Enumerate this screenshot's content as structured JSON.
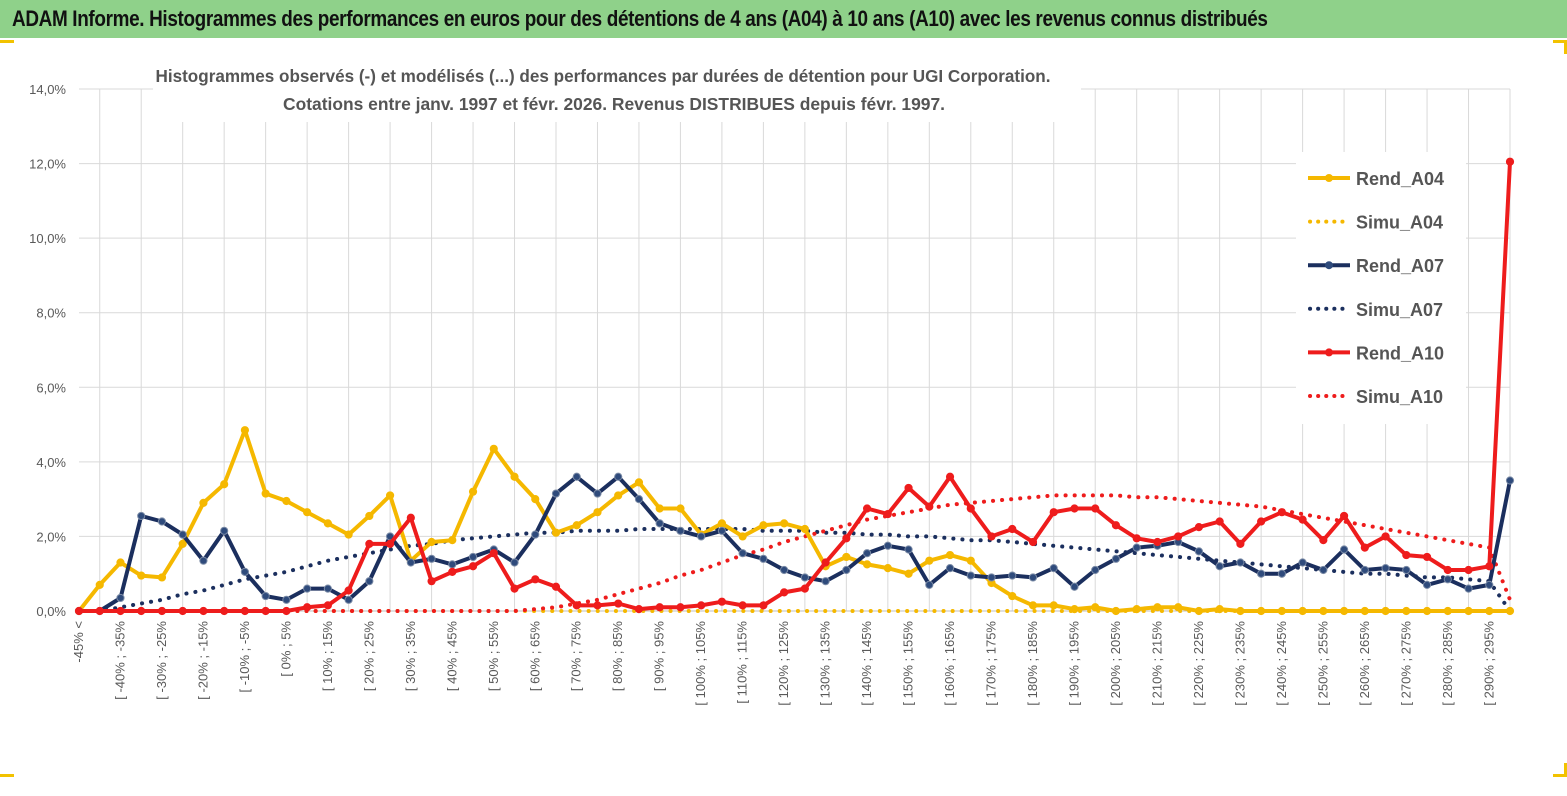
{
  "header": {
    "title": "ADAM Informe. Histogrammes des performances en euros pour des détentions de 4 ans (A04) à 10 ans (A10) avec les revenus connus distribués"
  },
  "colors": {
    "header_bg": "#8fd18a",
    "A04": "#f5b800",
    "A07": "#1b2f5e",
    "A10": "#ee1c1c",
    "grid": "#d9d9d9"
  },
  "chart_data": {
    "type": "line",
    "title_line1": "Histogrammes observés (-) et modélisés (...) des performances par durées de détention pour UGI Corporation.",
    "title_line2": "Cotations entre janv. 1997 et févr. 2026. Revenus DISTRIBUES depuis févr. 1997.",
    "y_ticks": [
      "0,0%",
      "2,0%",
      "4,0%",
      "6,0%",
      "8,0%",
      "10,0%",
      "12,0%",
      "14,0%"
    ],
    "ylim": [
      0,
      14
    ],
    "x_labels": [
      "-45% <",
      "[ -40% ; -35%",
      "[ -30% ; -25%",
      "[ -20% ; -15%",
      "[ -10% ; -5%",
      "[ 0% ; 5%",
      "[ 10% ; 15%",
      "[ 20% ; 25%",
      "[ 30% ; 35%",
      "[ 40% ; 45%",
      "[ 50% ; 55%",
      "[ 60% ; 65%",
      "[ 70% ; 75%",
      "[ 80% ; 85%",
      "[ 90% ; 95%",
      "[ 100% ; 105%",
      "[ 110% ; 115%",
      "[ 120% ; 125%",
      "[ 130% ; 135%",
      "[ 140% ; 145%",
      "[ 150% ; 155%",
      "[ 160% ; 165%",
      "[ 170% ; 175%",
      "[ 180% ; 185%",
      "[ 190% ; 195%",
      "[ 200% ; 205%",
      "[ 210% ; 215%",
      "[ 220% ; 225%",
      "[ 230% ; 235%",
      "[ 240% ; 245%",
      "[ 250% ; 255%",
      "[ 260% ; 265%",
      "[ 270% ; 275%",
      "[ 280% ; 285%",
      "[ 290% ; 295%"
    ],
    "n_categories": 70,
    "series": [
      {
        "name": "Rend_A04",
        "style": "solid",
        "color": "#f5b800",
        "values": [
          0.0,
          0.7,
          1.3,
          0.95,
          0.9,
          1.8,
          2.9,
          3.4,
          4.85,
          3.15,
          2.95,
          2.65,
          2.35,
          2.05,
          2.55,
          3.1,
          1.35,
          1.85,
          1.9,
          3.2,
          4.35,
          3.6,
          3.0,
          2.1,
          2.3,
          2.65,
          3.1,
          3.45,
          2.75,
          2.75,
          2.05,
          2.35,
          2.0,
          2.3,
          2.35,
          2.2,
          1.2,
          1.45,
          1.25,
          1.15,
          1.0,
          1.35,
          1.5,
          1.35,
          0.75,
          0.4,
          0.15,
          0.15,
          0.05,
          0.1,
          0.0,
          0.05,
          0.1,
          0.1,
          0.0,
          0.05,
          0.0,
          0.0,
          0.0,
          0.0,
          0.0,
          0.0,
          0.0,
          0.0,
          0.0,
          0.0,
          0.0,
          0.0,
          0.0,
          0.0
        ]
      },
      {
        "name": "Simu_A04",
        "style": "dotted",
        "color": "#f5b800",
        "values": [
          0.0,
          0.0,
          0.0,
          0.0,
          0.0,
          0.0,
          0.0,
          0.0,
          0.0,
          0.0,
          0.0,
          0.0,
          0.0,
          0.0,
          0.0,
          0.0,
          0.0,
          0.0,
          0.0,
          0.0,
          0.0,
          0.0,
          0.0,
          0.0,
          0.0,
          0.0,
          0.0,
          0.0,
          0.0,
          0.0,
          0.0,
          0.0,
          0.0,
          0.0,
          0.0,
          0.0,
          0.0,
          0.0,
          0.0,
          0.0,
          0.0,
          0.0,
          0.0,
          0.0,
          0.0,
          0.0,
          0.0,
          0.0,
          0.0,
          0.0,
          0.0,
          0.0,
          0.0,
          0.0,
          0.0,
          0.0,
          0.0,
          0.0,
          0.0,
          0.0,
          0.0,
          0.0,
          0.0,
          0.0,
          0.0,
          0.0,
          0.0,
          0.0,
          0.0,
          0.0
        ]
      },
      {
        "name": "Rend_A07",
        "style": "solid",
        "color": "#1b2f5e",
        "values": [
          0.0,
          0.0,
          0.35,
          2.55,
          2.4,
          2.05,
          1.35,
          2.15,
          1.05,
          0.4,
          0.3,
          0.6,
          0.6,
          0.3,
          0.8,
          2.0,
          1.3,
          1.4,
          1.25,
          1.45,
          1.65,
          1.3,
          2.05,
          3.15,
          3.6,
          3.15,
          3.6,
          3.0,
          2.35,
          2.15,
          2.0,
          2.15,
          1.55,
          1.4,
          1.1,
          0.9,
          0.8,
          1.1,
          1.55,
          1.75,
          1.65,
          0.7,
          1.15,
          0.95,
          0.9,
          0.95,
          0.9,
          1.15,
          0.65,
          1.1,
          1.4,
          1.7,
          1.75,
          1.85,
          1.6,
          1.2,
          1.3,
          1.0,
          1.0,
          1.3,
          1.1,
          1.65,
          1.1,
          1.15,
          1.1,
          0.7,
          0.85,
          0.6,
          0.7,
          3.5
        ]
      },
      {
        "name": "Simu_A07",
        "style": "dotted",
        "color": "#1b2f5e",
        "values": [
          0.0,
          0.0,
          0.1,
          0.2,
          0.3,
          0.45,
          0.55,
          0.7,
          0.85,
          0.95,
          1.05,
          1.2,
          1.35,
          1.45,
          1.55,
          1.65,
          1.75,
          1.8,
          1.9,
          1.95,
          2.0,
          2.05,
          2.1,
          2.1,
          2.15,
          2.15,
          2.15,
          2.2,
          2.2,
          2.2,
          2.2,
          2.2,
          2.2,
          2.15,
          2.15,
          2.15,
          2.1,
          2.1,
          2.05,
          2.05,
          2.0,
          2.0,
          1.95,
          1.9,
          1.9,
          1.85,
          1.8,
          1.75,
          1.7,
          1.65,
          1.6,
          1.55,
          1.5,
          1.45,
          1.4,
          1.35,
          1.3,
          1.25,
          1.2,
          1.15,
          1.1,
          1.05,
          1.0,
          1.0,
          0.95,
          0.9,
          0.9,
          0.85,
          0.8,
          0.0
        ]
      },
      {
        "name": "Rend_A10",
        "style": "solid",
        "color": "#ee1c1c",
        "values": [
          0.0,
          0.0,
          0.0,
          0.0,
          0.0,
          0.0,
          0.0,
          0.0,
          0.0,
          0.0,
          0.0,
          0.1,
          0.15,
          0.55,
          1.8,
          1.8,
          2.5,
          0.8,
          1.05,
          1.2,
          1.55,
          0.6,
          0.85,
          0.65,
          0.15,
          0.15,
          0.2,
          0.05,
          0.1,
          0.1,
          0.15,
          0.25,
          0.15,
          0.15,
          0.5,
          0.6,
          1.3,
          1.95,
          2.75,
          2.6,
          3.3,
          2.8,
          3.6,
          2.75,
          2.0,
          2.2,
          1.85,
          2.65,
          2.75,
          2.75,
          2.3,
          1.95,
          1.85,
          2.0,
          2.25,
          2.4,
          1.8,
          2.4,
          2.65,
          2.45,
          1.9,
          2.55,
          1.7,
          2.0,
          1.5,
          1.45,
          1.1,
          1.1,
          1.2,
          12.05
        ]
      },
      {
        "name": "Simu_A10",
        "style": "dotted",
        "color": "#ee1c1c",
        "values": [
          0.0,
          0.0,
          0.0,
          0.0,
          0.0,
          0.0,
          0.0,
          0.0,
          0.0,
          0.0,
          0.0,
          0.0,
          0.0,
          0.0,
          0.0,
          0.0,
          0.0,
          0.0,
          0.0,
          0.0,
          0.0,
          0.0,
          0.05,
          0.1,
          0.2,
          0.3,
          0.45,
          0.6,
          0.75,
          0.95,
          1.1,
          1.3,
          1.5,
          1.65,
          1.85,
          2.0,
          2.15,
          2.3,
          2.45,
          2.55,
          2.65,
          2.75,
          2.85,
          2.9,
          2.95,
          3.0,
          3.05,
          3.1,
          3.1,
          3.1,
          3.1,
          3.05,
          3.05,
          3.0,
          2.95,
          2.9,
          2.85,
          2.8,
          2.7,
          2.6,
          2.5,
          2.4,
          2.3,
          2.2,
          2.1,
          2.0,
          1.9,
          1.8,
          1.7,
          0.3
        ]
      }
    ],
    "legend": [
      "Rend_A04",
      "Simu_A04",
      "Rend_A07",
      "Simu_A07",
      "Rend_A10",
      "Simu_A10"
    ],
    "legend_position": "right"
  }
}
